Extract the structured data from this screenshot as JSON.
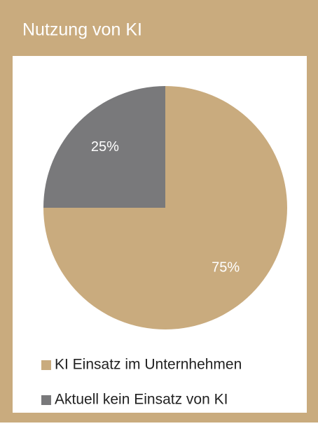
{
  "chart_data": {
    "type": "pie",
    "title": "Nutzung von KI",
    "categories": [
      "KI Einsatz im Unternhehmen",
      "Aktuell kein Einsatz von KI"
    ],
    "values": [
      75,
      25
    ],
    "value_labels": [
      "75%",
      "25%"
    ],
    "colors": [
      "#c9ab7e",
      "#79797b"
    ],
    "legend": "bottom"
  }
}
